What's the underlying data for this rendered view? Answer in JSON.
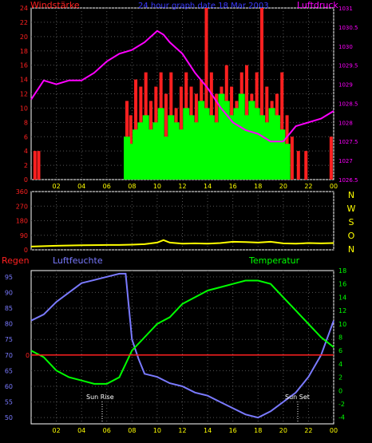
{
  "colors": {
    "background": "#000000",
    "frame": "#ffffff",
    "grid": "#555555",
    "red_axis": "#ff2020",
    "magenta": "#ff00ff",
    "blue": "#7a7aff",
    "green": "#00ff00",
    "yellow": "#ffff00",
    "time_label": "#ffff00"
  },
  "top": {
    "title": "24 hour graph date  18 Mar 2003",
    "left_label": "Windstärke",
    "right_label": "Luftdruck"
  },
  "middle": {
    "compass": [
      "N",
      "W",
      "S",
      "O",
      "N"
    ]
  },
  "bottom": {
    "left_label": "Regen",
    "mid_label": "Luftfeuchte",
    "right_label": "Temperatur",
    "sun_rise": "Sun Rise",
    "sun_set": "Sun Set"
  },
  "x_ticks": [
    "02",
    "04",
    "06",
    "08",
    "10",
    "12",
    "14",
    "16",
    "18",
    "20",
    "22",
    "00"
  ],
  "chart_data": [
    {
      "type": "bar",
      "title": "24 hour graph date  18 Mar 2003",
      "ylabel": "Windstärke",
      "y2label": "Luftdruck",
      "x_domain": [
        0,
        24
      ],
      "ylim": [
        0,
        24
      ],
      "y_ticks": [
        "0",
        "2",
        "4",
        "6",
        "8",
        "10",
        "12",
        "14",
        "16",
        "18",
        "20",
        "22",
        "24"
      ],
      "y2lim": [
        1026.5,
        1031
      ],
      "y2_ticks": [
        "1026.5",
        "1027",
        "1027.5",
        "1028",
        "1028.5",
        "1029",
        "1029.5",
        "1030",
        "1030.5",
        "1031"
      ],
      "series": [
        {
          "name": "Windstärke",
          "color": "#ff2020",
          "kind": "bars",
          "x": [
            0.3,
            0.6,
            7.6,
            7.9,
            8.3,
            8.7,
            9.1,
            9.5,
            9.9,
            10.3,
            10.7,
            11.1,
            11.5,
            11.9,
            12.3,
            12.7,
            13.1,
            13.5,
            13.9,
            14.3,
            14.7,
            15.1,
            15.5,
            15.9,
            16.3,
            16.7,
            17.1,
            17.5,
            17.9,
            18.3,
            18.7,
            19.1,
            19.5,
            19.9,
            20.3,
            20.7,
            21.2,
            21.8,
            23.8
          ],
          "values": [
            4,
            4,
            11,
            9,
            14,
            13,
            15,
            11,
            13,
            15,
            12,
            15,
            10,
            13,
            15,
            13,
            12,
            14,
            24,
            15,
            12,
            13,
            16,
            13,
            11,
            15,
            16,
            12,
            15,
            24,
            13,
            11,
            12,
            15,
            9,
            6,
            4,
            4,
            6
          ]
        },
        {
          "name": "Wind (gust band)",
          "color": "#00ff00",
          "kind": "bars",
          "x": [
            7.6,
            7.9,
            8.3,
            8.7,
            9.1,
            9.5,
            9.9,
            10.3,
            10.7,
            11.1,
            11.5,
            11.9,
            12.3,
            12.7,
            13.1,
            13.5,
            13.9,
            14.3,
            14.7,
            15.1,
            15.5,
            15.9,
            16.3,
            16.7,
            17.1,
            17.5,
            17.9,
            18.3,
            18.7,
            19.1,
            19.5,
            19.9,
            20.3
          ],
          "values": [
            6,
            5,
            7,
            8,
            9,
            7,
            8,
            10,
            6,
            9,
            8,
            7,
            10,
            9,
            8,
            11,
            10,
            9,
            8,
            12,
            11,
            9,
            10,
            12,
            9,
            11,
            10,
            9,
            8,
            10,
            9,
            7,
            5
          ]
        },
        {
          "name": "Luftdruck",
          "color": "#ff00ff",
          "kind": "line",
          "axis": "right",
          "x": [
            0,
            1,
            2,
            3,
            4,
            5,
            6,
            7,
            8,
            9,
            10,
            10.5,
            11,
            12,
            13,
            14,
            15,
            16,
            17,
            18,
            19,
            20,
            21,
            22,
            23,
            24
          ],
          "values": [
            1028.6,
            1029.1,
            1029.0,
            1029.1,
            1029.1,
            1029.3,
            1029.6,
            1029.8,
            1029.9,
            1030.1,
            1030.4,
            1030.3,
            1030.1,
            1029.8,
            1029.3,
            1028.9,
            1028.4,
            1028.0,
            1027.8,
            1027.7,
            1027.5,
            1027.5,
            1027.9,
            1028.0,
            1028.1,
            1028.3
          ]
        }
      ]
    },
    {
      "type": "line",
      "ylabel": "",
      "x_domain": [
        0,
        24
      ],
      "ylim": [
        0,
        360
      ],
      "y_ticks": [
        "0",
        "90",
        "180",
        "270",
        "360"
      ],
      "series": [
        {
          "name": "Windrichtung",
          "color": "#ffff00",
          "x": [
            0,
            2,
            4,
            6,
            7,
            8,
            9,
            10,
            10.5,
            11,
            12,
            13,
            14,
            15,
            16,
            17,
            18,
            19,
            20,
            21,
            22,
            23,
            24
          ],
          "values": [
            20,
            25,
            28,
            30,
            30,
            32,
            35,
            45,
            60,
            45,
            38,
            40,
            38,
            42,
            50,
            48,
            45,
            50,
            40,
            38,
            42,
            40,
            42
          ]
        }
      ]
    },
    {
      "type": "line",
      "x_domain": [
        0,
        24
      ],
      "ylim": [
        48,
        97
      ],
      "y_ticks": [
        "50",
        "55",
        "60",
        "65",
        "70",
        "75",
        "80",
        "85",
        "90",
        "95"
      ],
      "y2lim": [
        -5,
        18
      ],
      "y2_ticks": [
        "-4",
        "-2",
        "0",
        "2",
        "4",
        "6",
        "8",
        "10",
        "12",
        "14",
        "16",
        "18"
      ],
      "rain_marker": "0",
      "series": [
        {
          "name": "Luftfeuchte",
          "color": "#7a7aff",
          "x": [
            0,
            1,
            2,
            3,
            4,
            5,
            6,
            7,
            7.5,
            8,
            8.5,
            9,
            10,
            11,
            12,
            13,
            14,
            15,
            16,
            17,
            18,
            19,
            20,
            21,
            22,
            23,
            24
          ],
          "values": [
            81,
            83,
            87,
            90,
            93,
            94,
            95,
            96,
            96,
            75,
            69,
            64,
            63,
            61,
            60,
            58,
            57,
            55,
            53,
            51,
            50,
            52,
            55,
            58,
            63,
            70,
            81
          ]
        },
        {
          "name": "Regen",
          "color": "#ff2020",
          "x": [
            0,
            24
          ],
          "values": [
            70,
            70
          ]
        },
        {
          "name": "Temperatur",
          "color": "#00ff00",
          "axis": "right",
          "x": [
            0,
            1,
            2,
            3,
            4,
            5,
            6,
            7,
            7.5,
            8,
            9,
            10,
            11,
            12,
            13,
            14,
            15,
            16,
            17,
            18,
            19,
            20,
            21,
            22,
            23,
            24
          ],
          "values": [
            6,
            5,
            3,
            2,
            1.5,
            1,
            1,
            2,
            4,
            6,
            8,
            10,
            11,
            13,
            14,
            15,
            15.5,
            16,
            16.5,
            16.5,
            16,
            14,
            12,
            10,
            8,
            6.5
          ]
        }
      ]
    }
  ]
}
